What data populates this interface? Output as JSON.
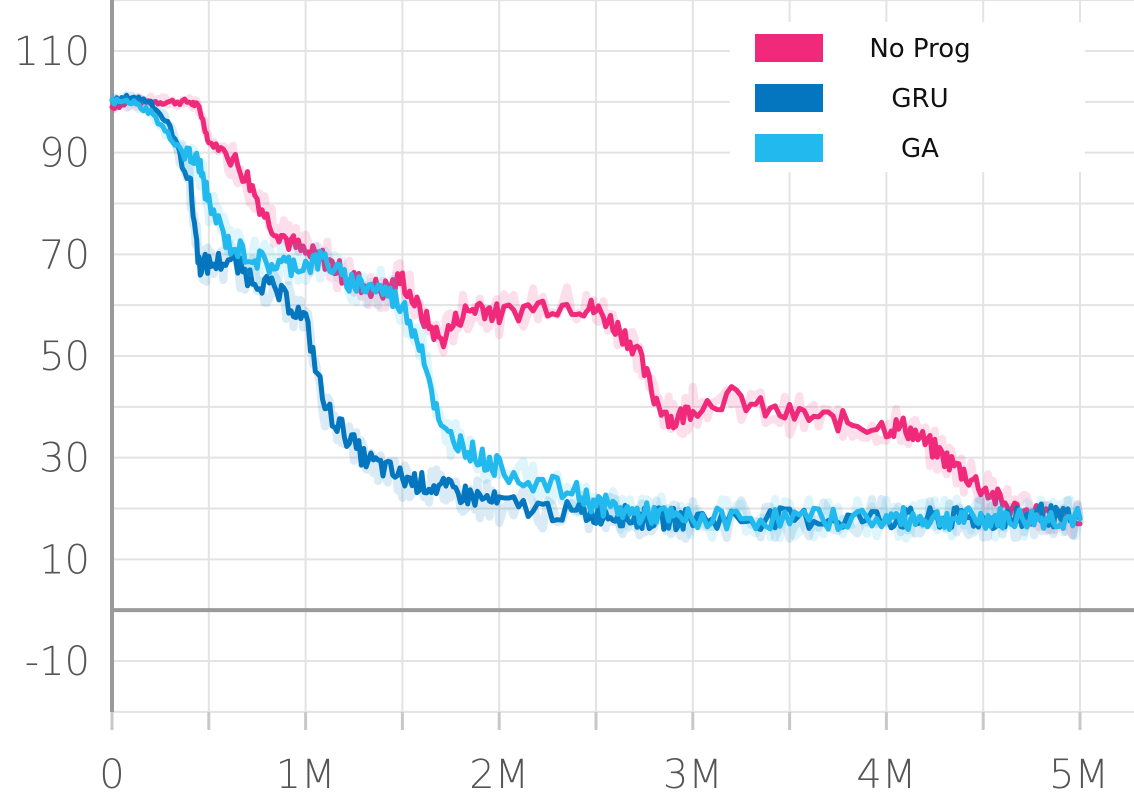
{
  "chart_data": {
    "type": "line",
    "title": "",
    "xlabel": "",
    "ylabel": "",
    "xlim": [
      0,
      5000000
    ],
    "ylim": [
      -20,
      120
    ],
    "x_ticks": [
      {
        "value": 0,
        "label": "0"
      },
      {
        "value": 1000000,
        "label": "1M"
      },
      {
        "value": 2000000,
        "label": "2M"
      },
      {
        "value": 3000000,
        "label": "3M"
      },
      {
        "value": 4000000,
        "label": "4M"
      },
      {
        "value": 5000000,
        "label": "5M"
      }
    ],
    "y_ticks": [
      {
        "value": 110,
        "label": "110"
      },
      {
        "value": 90,
        "label": "90"
      },
      {
        "value": 70,
        "label": "70"
      },
      {
        "value": 50,
        "label": "50"
      },
      {
        "value": 30,
        "label": "30"
      },
      {
        "value": 10,
        "label": "10"
      },
      {
        "value": -10,
        "label": "-10"
      }
    ],
    "grid": true,
    "legend_position": "top-right",
    "x": [
      0,
      100000,
      200000,
      300000,
      400000,
      450000,
      500000,
      600000,
      700000,
      800000,
      900000,
      1000000,
      1100000,
      1200000,
      1300000,
      1400000,
      1500000,
      1600000,
      1700000,
      1800000,
      1900000,
      2000000,
      2200000,
      2400000,
      2500000,
      2600000,
      2700000,
      2800000,
      2900000,
      3000000,
      3200000,
      3400000,
      3600000,
      3800000,
      4000000,
      4100000,
      4200000,
      4300000,
      4400000,
      4500000,
      4600000,
      4700000,
      4800000,
      4900000,
      5000000
    ],
    "series": [
      {
        "name": "No Prog",
        "color": "#f0297a",
        "values": [
          99,
          100,
          100,
          100,
          100,
          99,
          92,
          90,
          85,
          77,
          73,
          70,
          69,
          66,
          64,
          63,
          65,
          58,
          53,
          58,
          60,
          58,
          60,
          60,
          59,
          56,
          52,
          42,
          37,
          40,
          42,
          39,
          38,
          37,
          36,
          36,
          33,
          30,
          27,
          24,
          21,
          19,
          19,
          18,
          17
        ]
      },
      {
        "name": "GRU",
        "color": "#0476bf",
        "values": [
          100,
          101,
          100,
          95,
          85,
          68,
          68,
          69,
          66,
          64,
          61,
          57,
          40,
          35,
          30,
          28,
          26,
          25,
          24,
          23,
          22,
          21,
          20,
          19,
          19,
          19,
          18,
          18,
          18,
          18,
          18,
          18,
          18,
          18,
          18,
          18,
          18,
          18,
          18,
          18,
          18,
          18,
          19,
          18,
          18
        ]
      },
      {
        "name": "GA",
        "color": "#22b9ee",
        "values": [
          100,
          100,
          98,
          93,
          89,
          88,
          80,
          72,
          70,
          68,
          68,
          68,
          69,
          65,
          64,
          63,
          60,
          52,
          35,
          33,
          30,
          28,
          25,
          23,
          21,
          20,
          19,
          19,
          18,
          18,
          18,
          18,
          18,
          18,
          18,
          18,
          18,
          18,
          18,
          18,
          18,
          18,
          18,
          18,
          18
        ]
      }
    ]
  }
}
